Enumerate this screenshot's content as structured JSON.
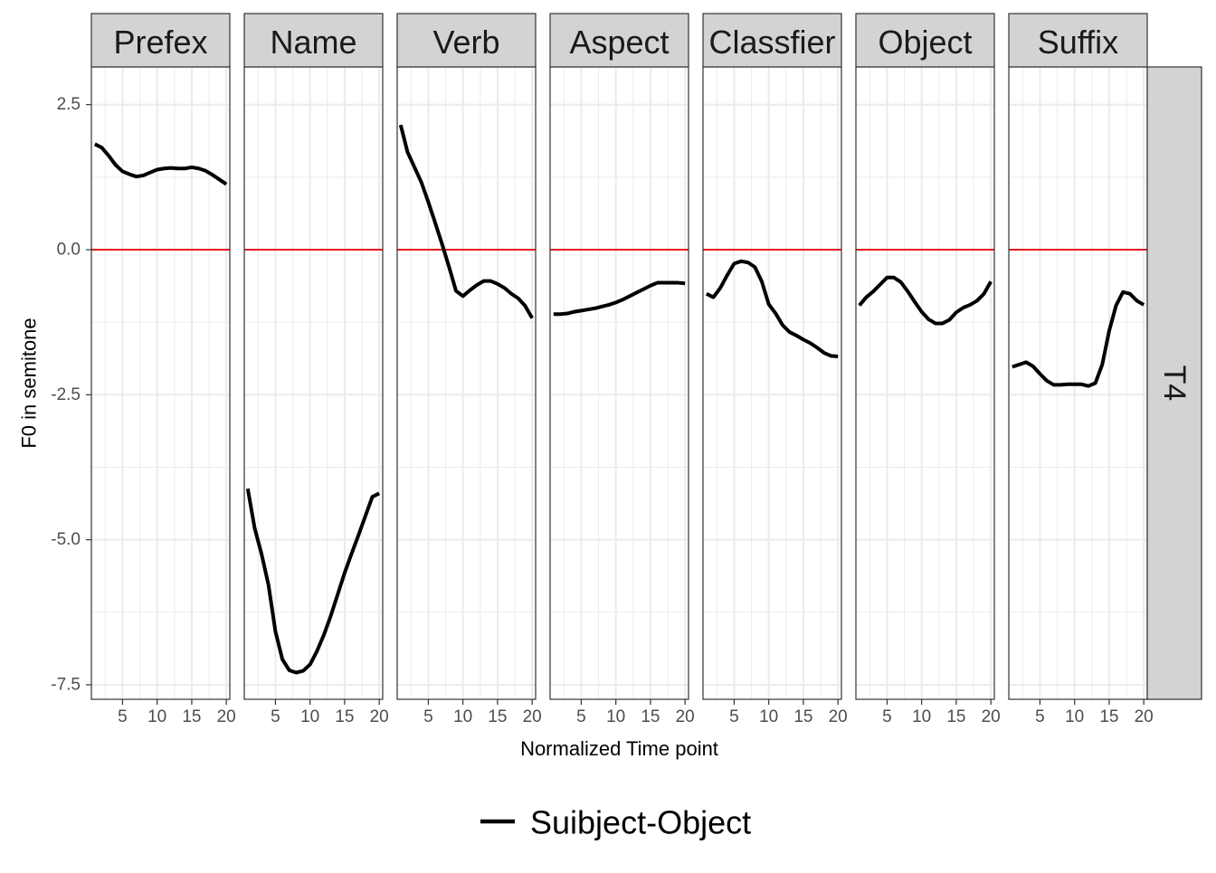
{
  "chart_data": {
    "type": "line",
    "xlabel": "Normalized Time point",
    "ylabel": "F0 in semitone",
    "xlim": [
      0.5,
      20.5
    ],
    "ylim": [
      -7.75,
      2.5
    ],
    "x_ticks": [
      5,
      10,
      15,
      20
    ],
    "y_ticks": [
      2.5,
      0.0,
      -2.5,
      -5.0,
      -7.5
    ],
    "y_tick_labels": [
      "2.5",
      "0.0",
      "-2.5",
      "-5.0",
      "-7.5"
    ],
    "reference_line": {
      "y": 0,
      "color": "#e31a1c"
    },
    "grid": true,
    "row_strip": "T4",
    "legend": {
      "position": "bottom",
      "entries": [
        "Suibject-Object"
      ]
    },
    "colors": {
      "series": "#000000",
      "reference": "#e31a1c",
      "strip": "#d3d3d3",
      "grid": "#ebebeb"
    },
    "panels": [
      {
        "name": "Prefex",
        "series": [
          {
            "name": "Suibject-Object",
            "x": [
              1,
              2,
              3,
              4,
              5,
              6,
              7,
              8,
              9,
              10,
              11,
              12,
              13,
              14,
              15,
              16,
              17,
              18,
              19,
              20
            ],
            "y": [
              1.82,
              1.76,
              1.62,
              1.46,
              1.35,
              1.3,
              1.26,
              1.28,
              1.33,
              1.38,
              1.4,
              1.41,
              1.4,
              1.4,
              1.42,
              1.4,
              1.36,
              1.29,
              1.21,
              1.13
            ]
          }
        ]
      },
      {
        "name": "Name",
        "series": [
          {
            "name": "Suibject-Object",
            "x": [
              1,
              2,
              3,
              4,
              5,
              6,
              7,
              8,
              9,
              10,
              11,
              12,
              13,
              14,
              15,
              16,
              17,
              18,
              19,
              20
            ],
            "y": [
              -4.12,
              -4.8,
              -5.25,
              -5.78,
              -6.58,
              -7.06,
              -7.25,
              -7.29,
              -7.26,
              -7.15,
              -6.92,
              -6.64,
              -6.31,
              -5.94,
              -5.57,
              -5.24,
              -4.92,
              -4.59,
              -4.26,
              -4.2
            ]
          }
        ]
      },
      {
        "name": "Verb",
        "series": [
          {
            "name": "Suibject-Object",
            "x": [
              1,
              2,
              3,
              4,
              5,
              6,
              7,
              8,
              9,
              10,
              11,
              12,
              13,
              14,
              15,
              16,
              17,
              18,
              19,
              20
            ],
            "y": [
              2.15,
              1.68,
              1.42,
              1.16,
              0.82,
              0.46,
              0.09,
              -0.3,
              -0.71,
              -0.8,
              -0.7,
              -0.61,
              -0.54,
              -0.54,
              -0.59,
              -0.66,
              -0.76,
              -0.84,
              -0.97,
              -1.18
            ]
          }
        ]
      },
      {
        "name": "Aspect",
        "series": [
          {
            "name": "Suibject-Object",
            "x": [
              1,
              2,
              3,
              4,
              5,
              6,
              7,
              8,
              9,
              10,
              11,
              12,
              13,
              14,
              15,
              16,
              17,
              18,
              19,
              20
            ],
            "y": [
              -1.11,
              -1.11,
              -1.1,
              -1.07,
              -1.05,
              -1.03,
              -1.01,
              -0.98,
              -0.95,
              -0.91,
              -0.86,
              -0.8,
              -0.74,
              -0.68,
              -0.62,
              -0.57,
              -0.57,
              -0.57,
              -0.57,
              -0.58
            ]
          }
        ]
      },
      {
        "name": "Classfier",
        "series": [
          {
            "name": "Suibject-Object",
            "x": [
              1,
              2,
              3,
              4,
              5,
              6,
              7,
              8,
              9,
              10,
              11,
              12,
              13,
              14,
              15,
              16,
              17,
              18,
              19,
              20
            ],
            "y": [
              -0.76,
              -0.82,
              -0.66,
              -0.44,
              -0.24,
              -0.2,
              -0.22,
              -0.3,
              -0.55,
              -0.94,
              -1.1,
              -1.3,
              -1.42,
              -1.48,
              -1.55,
              -1.61,
              -1.69,
              -1.78,
              -1.83,
              -1.84
            ]
          }
        ]
      },
      {
        "name": "Object",
        "series": [
          {
            "name": "Suibject-Object",
            "x": [
              1,
              2,
              3,
              4,
              5,
              6,
              7,
              8,
              9,
              10,
              11,
              12,
              13,
              14,
              15,
              16,
              17,
              18,
              19,
              20
            ],
            "y": [
              -0.96,
              -0.82,
              -0.72,
              -0.6,
              -0.48,
              -0.48,
              -0.56,
              -0.72,
              -0.9,
              -1.07,
              -1.2,
              -1.27,
              -1.27,
              -1.21,
              -1.08,
              -1.0,
              -0.95,
              -0.88,
              -0.76,
              -0.55
            ]
          }
        ]
      },
      {
        "name": "Suffix",
        "series": [
          {
            "name": "Suibject-Object",
            "x": [
              1,
              2,
              3,
              4,
              5,
              6,
              7,
              8,
              9,
              10,
              11,
              12,
              13,
              14,
              15,
              16,
              17,
              18,
              19,
              20
            ],
            "y": [
              -2.02,
              -1.98,
              -1.94,
              -2.01,
              -2.14,
              -2.26,
              -2.33,
              -2.33,
              -2.32,
              -2.32,
              -2.32,
              -2.35,
              -2.3,
              -1.98,
              -1.4,
              -0.96,
              -0.73,
              -0.76,
              -0.88,
              -0.95
            ]
          }
        ]
      }
    ]
  }
}
